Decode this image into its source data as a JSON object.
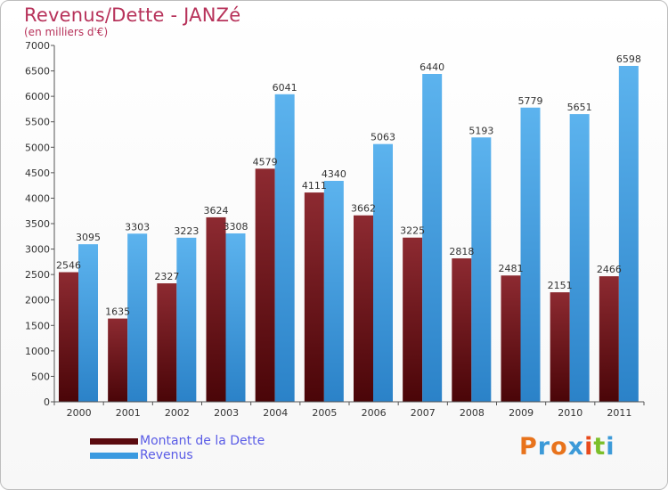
{
  "title": "Revenus/Dette - JANZé",
  "subtitle": "(en milliers d'€)",
  "logo_text": "Proxiti",
  "logo_colors": [
    "#e8731c",
    "#3c9ad8",
    "#e8731c",
    "#3c9ad8",
    "#e84a1c",
    "#7cbf2a",
    "#3c9ad8"
  ],
  "colors": {
    "dette": "#6b0f14",
    "revenus": "#3a9ae0",
    "axis": "#555555",
    "grid": "#e6e6e6"
  },
  "chart_data": {
    "type": "bar",
    "categories": [
      "2000",
      "2001",
      "2002",
      "2003",
      "2004",
      "2005",
      "2006",
      "2007",
      "2008",
      "2009",
      "2010",
      "2011"
    ],
    "series": [
      {
        "name": "Montant de la Dette",
        "values": [
          2546,
          1635,
          2327,
          3624,
          4579,
          4111,
          3662,
          3225,
          2818,
          2481,
          2151,
          2466
        ]
      },
      {
        "name": "Revenus",
        "values": [
          3095,
          3303,
          3223,
          3308,
          6041,
          4340,
          5063,
          6440,
          5193,
          5779,
          5651,
          6598
        ]
      }
    ],
    "ylim": [
      0,
      7000
    ],
    "yticks": [
      "0",
      "500",
      "1000",
      "1500",
      "2000",
      "2500",
      "3000",
      "3500",
      "4000",
      "4500",
      "5000",
      "5500",
      "6000",
      "6500",
      "7000"
    ],
    "legend_position": "bottom-left",
    "grid": false
  }
}
